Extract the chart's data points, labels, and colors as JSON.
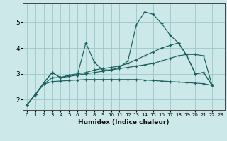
{
  "xlabel": "Humidex (Indice chaleur)",
  "bg_color": "#cce8e8",
  "grid_color": "#9cc8c8",
  "line_color": "#1a6060",
  "x_values": [
    0,
    1,
    2,
    3,
    4,
    5,
    6,
    7,
    8,
    9,
    10,
    11,
    12,
    13,
    14,
    15,
    16,
    17,
    18,
    19,
    20,
    21,
    22,
    23
  ],
  "series1": [
    1.8,
    2.2,
    2.65,
    3.05,
    2.85,
    2.95,
    2.95,
    4.2,
    3.45,
    3.15,
    3.15,
    3.25,
    3.5,
    4.9,
    5.4,
    5.3,
    4.95,
    4.5,
    4.2,
    3.7,
    3.0,
    3.05,
    2.55,
    null
  ],
  "series2": [
    1.8,
    2.2,
    2.65,
    3.05,
    2.85,
    2.95,
    3.0,
    3.05,
    3.15,
    3.2,
    3.25,
    3.3,
    3.4,
    3.55,
    3.7,
    3.85,
    4.0,
    4.1,
    4.2,
    3.7,
    3.0,
    3.05,
    2.55,
    null
  ],
  "series3": [
    1.8,
    2.2,
    2.6,
    2.85,
    2.85,
    2.9,
    2.95,
    3.0,
    3.05,
    3.1,
    3.15,
    3.2,
    3.25,
    3.3,
    3.35,
    3.4,
    3.5,
    3.6,
    3.7,
    3.75,
    3.75,
    3.7,
    2.55,
    null
  ],
  "series4": [
    1.8,
    2.2,
    2.6,
    2.7,
    2.72,
    2.74,
    2.76,
    2.78,
    2.78,
    2.78,
    2.78,
    2.78,
    2.78,
    2.78,
    2.76,
    2.74,
    2.72,
    2.7,
    2.68,
    2.66,
    2.64,
    2.62,
    2.55,
    null
  ],
  "ylim": [
    1.6,
    5.75
  ],
  "yticks": [
    2,
    3,
    4,
    5
  ],
  "xticks": [
    0,
    1,
    2,
    3,
    4,
    5,
    6,
    7,
    8,
    9,
    10,
    11,
    12,
    13,
    14,
    15,
    16,
    17,
    18,
    19,
    20,
    21,
    22,
    23
  ]
}
